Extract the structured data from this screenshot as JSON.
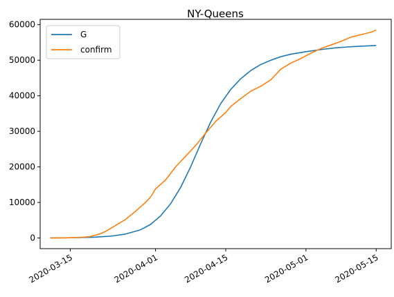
{
  "chart_data": {
    "type": "line",
    "title": "NY-Queens",
    "xlabel": "",
    "ylabel": "",
    "xlim": [
      "2020-03-09",
      "2020-05-18"
    ],
    "ylim": [
      -3000,
      61500
    ],
    "x_ticks": [
      "2020-03-15",
      "2020-04-01",
      "2020-04-15",
      "2020-05-01",
      "2020-05-15"
    ],
    "y_ticks": [
      0,
      10000,
      20000,
      30000,
      40000,
      50000,
      60000
    ],
    "grid": false,
    "legend": "top-left",
    "series": [
      {
        "name": "G",
        "color": "#1f77b4",
        "points": [
          [
            "2020-03-11",
            20
          ],
          [
            "2020-03-14",
            50
          ],
          [
            "2020-03-17",
            110
          ],
          [
            "2020-03-20",
            240
          ],
          [
            "2020-03-23",
            500
          ],
          [
            "2020-03-26",
            1100
          ],
          [
            "2020-03-29",
            2300
          ],
          [
            "2020-03-31",
            3800
          ],
          [
            "2020-04-02",
            6200
          ],
          [
            "2020-04-04",
            9600
          ],
          [
            "2020-04-06",
            14200
          ],
          [
            "2020-04-08",
            20000
          ],
          [
            "2020-04-10",
            26500
          ],
          [
            "2020-04-12",
            32600
          ],
          [
            "2020-04-14",
            37800
          ],
          [
            "2020-04-16",
            41800
          ],
          [
            "2020-04-18",
            44800
          ],
          [
            "2020-04-20",
            47100
          ],
          [
            "2020-04-22",
            48800
          ],
          [
            "2020-04-24",
            50000
          ],
          [
            "2020-04-26",
            51000
          ],
          [
            "2020-04-28",
            51700
          ],
          [
            "2020-05-01",
            52400
          ],
          [
            "2020-05-04",
            53000
          ],
          [
            "2020-05-07",
            53500
          ],
          [
            "2020-05-10",
            53800
          ],
          [
            "2020-05-13",
            54000
          ],
          [
            "2020-05-15",
            54150
          ]
        ]
      },
      {
        "name": "confirm",
        "color": "#ff7f0e",
        "points": [
          [
            "2020-03-11",
            0
          ],
          [
            "2020-03-14",
            50
          ],
          [
            "2020-03-17",
            150
          ],
          [
            "2020-03-19",
            400
          ],
          [
            "2020-03-21",
            1200
          ],
          [
            "2020-03-22",
            1800
          ],
          [
            "2020-03-24",
            3500
          ],
          [
            "2020-03-26",
            5200
          ],
          [
            "2020-03-28",
            7500
          ],
          [
            "2020-03-30",
            10000
          ],
          [
            "2020-03-31",
            11500
          ],
          [
            "2020-04-01",
            13800
          ],
          [
            "2020-04-03",
            16300
          ],
          [
            "2020-04-05",
            20000
          ],
          [
            "2020-04-07",
            23000
          ],
          [
            "2020-04-09",
            26000
          ],
          [
            "2020-04-11",
            29500
          ],
          [
            "2020-04-13",
            32800
          ],
          [
            "2020-04-15",
            35300
          ],
          [
            "2020-04-16",
            37000
          ],
          [
            "2020-04-18",
            39200
          ],
          [
            "2020-04-20",
            41300
          ],
          [
            "2020-04-22",
            42700
          ],
          [
            "2020-04-24",
            44500
          ],
          [
            "2020-04-26",
            47500
          ],
          [
            "2020-04-28",
            49200
          ],
          [
            "2020-04-30",
            50500
          ],
          [
            "2020-05-02",
            52000
          ],
          [
            "2020-05-04",
            53300
          ],
          [
            "2020-05-06",
            54300
          ],
          [
            "2020-05-08",
            55300
          ],
          [
            "2020-05-10",
            56500
          ],
          [
            "2020-05-12",
            57200
          ],
          [
            "2020-05-14",
            57900
          ],
          [
            "2020-05-15",
            58500
          ]
        ]
      }
    ]
  }
}
